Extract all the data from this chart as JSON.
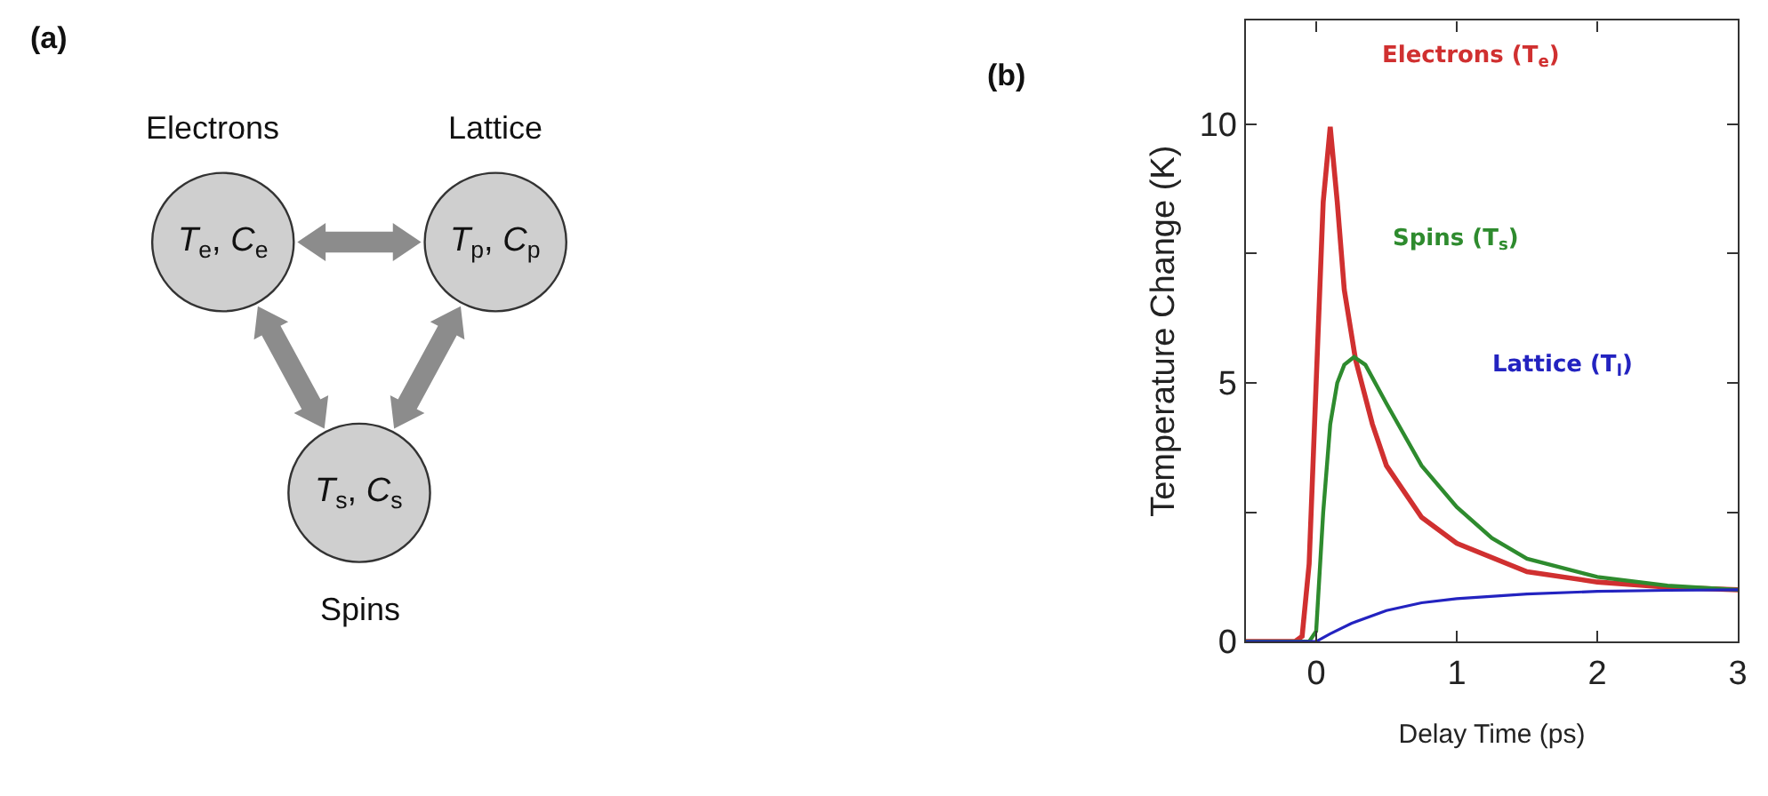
{
  "chart_data": [
    {
      "type": "other",
      "title": "(a)",
      "annotations": [
        "Electrons",
        "Lattice",
        "Spins",
        "T$_{e}$, C$_{e}$",
        "T$_{p}$, C$_{p}$",
        "T$_{s}$, C$_{s}$"
      ]
    },
    {
      "type": "line",
      "title": "(b)",
      "xlabel": "Delay Time (ps)",
      "ylabel": "Temperature Change (K)",
      "xlim": [
        -0.5,
        3
      ],
      "xticks": [
        0,
        1,
        2,
        3
      ],
      "ylim": [
        0,
        12
      ],
      "yticks": [
        0,
        {
          "value": 2.5,
          "label": null
        },
        5,
        {
          "value": 7.5,
          "label": null
        },
        10
      ],
      "legend": false,
      "marker": "none",
      "line_style": "solid",
      "series": [
        {
          "name": "Electrons (T$_{e}$)",
          "color": "#d03030",
          "x": [
            -0.5,
            -0.15,
            -0.1,
            -0.05,
            0,
            0.05,
            0.1,
            0.15,
            0.2,
            0.28,
            0.4,
            0.5,
            0.75,
            1.0,
            1.5,
            2.0,
            2.5,
            3.0
          ],
          "values": [
            0,
            0,
            0.1,
            1.5,
            5,
            8.5,
            9.95,
            8.5,
            6.8,
            5.45,
            4.2,
            3.4,
            2.4,
            1.9,
            1.35,
            1.15,
            1.05,
            1.0
          ]
        },
        {
          "name": "Spins (T$_{s}$)",
          "color": "#2e8b2e",
          "x": [
            -0.5,
            -0.05,
            0,
            0.05,
            0.1,
            0.15,
            0.2,
            0.27,
            0.35,
            0.5,
            0.75,
            1.0,
            1.25,
            1.5,
            2.0,
            2.5,
            3.0
          ],
          "values": [
            0,
            0,
            0.2,
            2.5,
            4.2,
            5.0,
            5.35,
            5.5,
            5.35,
            4.6,
            3.4,
            2.6,
            2.0,
            1.6,
            1.25,
            1.08,
            1.0
          ]
        },
        {
          "name": "Lattice (T$_{l}$)",
          "color": "#2323c0",
          "x": [
            -0.5,
            0,
            0.1,
            0.25,
            0.5,
            0.75,
            1.0,
            1.5,
            2.0,
            2.5,
            3.0
          ],
          "values": [
            0,
            0,
            0.15,
            0.35,
            0.6,
            0.75,
            0.83,
            0.92,
            0.97,
            0.99,
            1.0
          ]
        }
      ]
    }
  ]
}
